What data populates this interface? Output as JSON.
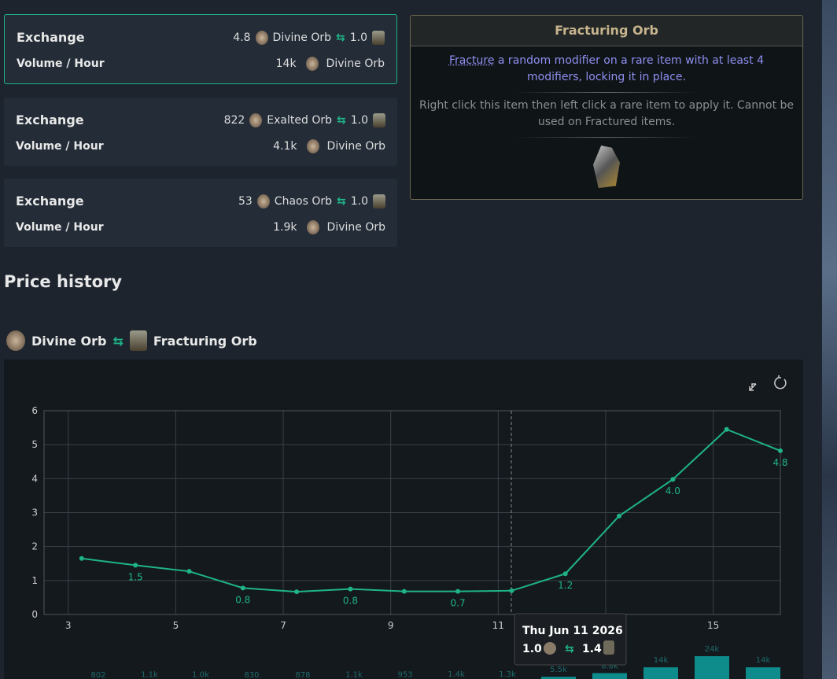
{
  "exchanges": [
    {
      "label": "Exchange",
      "pay": "4.8",
      "pay_item": "Divine Orb",
      "get": "1.0",
      "volume_label": "Volume / Hour",
      "volume": "14k",
      "volume_item": "Divine Orb"
    },
    {
      "label": "Exchange",
      "pay": "822",
      "pay_item": "Exalted Orb",
      "get": "1.0",
      "volume_label": "Volume / Hour",
      "volume": "4.1k",
      "volume_item": "Divine Orb"
    },
    {
      "label": "Exchange",
      "pay": "53",
      "pay_item": "Chaos Orb",
      "get": "1.0",
      "volume_label": "Volume / Hour",
      "volume": "1.9k",
      "volume_item": "Divine Orb"
    }
  ],
  "item_card": {
    "title": "Fracturing Orb",
    "keyword": "Fracture",
    "description": " a random modifier on a rare item with at least 4 modifiers, locking it in place.",
    "usage": "Right click this item then left click a rare item to apply it. Cannot be used on Fractured items."
  },
  "section_title": "Price history",
  "pair": {
    "from": "Divine Orb",
    "to": "Fracturing Orb"
  },
  "tooltip": {
    "date": "Thu Jun 11 2026",
    "from": "1.0",
    "to": "1.4"
  },
  "chart_data": [
    {
      "type": "line",
      "color": "#1fb487",
      "grid": true,
      "x": [
        3.25,
        4.25,
        5.25,
        6.25,
        7.25,
        8.25,
        9.25,
        10.25,
        11.25,
        12.25,
        13.25,
        14.25,
        15.25,
        16.25
      ],
      "values": [
        1.65,
        1.45,
        1.27,
        0.78,
        0.67,
        0.75,
        0.68,
        0.68,
        0.7,
        1.2,
        2.9,
        3.98,
        5.45,
        4.82
      ],
      "value_labels": [
        null,
        "1.5",
        null,
        "0.8",
        null,
        "0.8",
        null,
        "0.7",
        null,
        "1.2",
        null,
        "4.0",
        null,
        "4.8"
      ],
      "xlim": [
        2.55,
        16.25
      ],
      "xticks": [
        3,
        5,
        7,
        9,
        11,
        13,
        15
      ],
      "ylim": [
        0,
        6
      ],
      "yticks": [
        0,
        1,
        2,
        3,
        4,
        5,
        6
      ]
    },
    {
      "type": "bar",
      "color": "#0e8c8c",
      "values": [
        802,
        1100,
        1000,
        830,
        878,
        1100,
        953,
        1400,
        1300,
        5500,
        8800,
        14000,
        24000,
        14000
      ],
      "value_labels": [
        "802",
        "1.1k",
        "1.0k",
        "830",
        "878",
        "1.1k",
        "953",
        "1.4k",
        "1.3k",
        "5.5k",
        "8.8k",
        "14k",
        "24k",
        "14k"
      ]
    }
  ]
}
